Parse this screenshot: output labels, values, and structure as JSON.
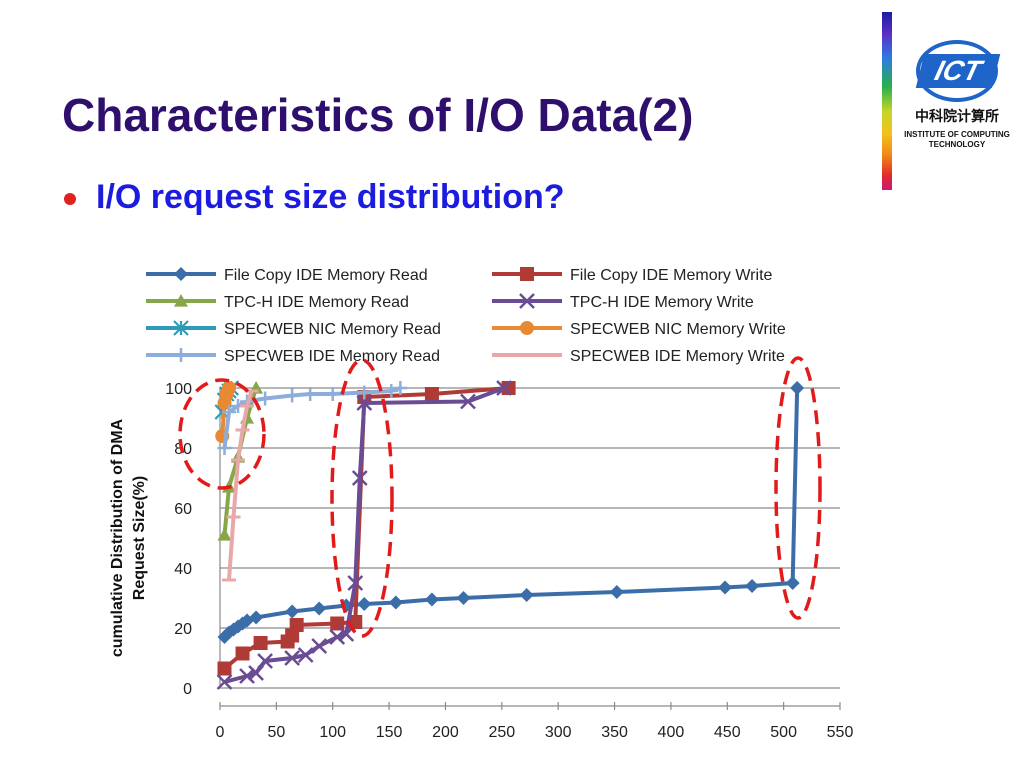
{
  "slide": {
    "title": "Characteristics of I/O Data(2)",
    "bullet": "I/O request size distribution?"
  },
  "logo": {
    "mark": "ICT",
    "chinese": "中科院计算所",
    "english_line1": "INSTITUTE OF COMPUTING",
    "english_line2": "TECHNOLOGY"
  },
  "chart_data": {
    "type": "line",
    "title": "",
    "xlabel": "",
    "ylabel": "cumulative Distribution of DMA Request Size(%)",
    "xlim": [
      0,
      550
    ],
    "ylim": [
      0,
      100
    ],
    "xticks": [
      0,
      50,
      100,
      150,
      200,
      250,
      300,
      350,
      400,
      450,
      500,
      550
    ],
    "yticks": [
      0,
      20,
      40,
      60,
      80,
      100
    ],
    "grid": "horizontal",
    "legend_position": "top",
    "series": [
      {
        "name": "File Copy IDE Memory Read",
        "color": "#3B6EA8",
        "marker": "diamond",
        "x": [
          4,
          8,
          12,
          16,
          20,
          24,
          32,
          64,
          88,
          112,
          128,
          156,
          188,
          216,
          272,
          352,
          448,
          472,
          508,
          512
        ],
        "y": [
          17,
          18.5,
          19.5,
          20.5,
          21.5,
          22.5,
          23.5,
          25.5,
          26.5,
          27.5,
          28,
          28.5,
          29.5,
          30,
          31,
          32,
          33.5,
          34,
          35,
          100
        ]
      },
      {
        "name": "File Copy IDE Memory Write",
        "color": "#B03A36",
        "marker": "square",
        "x": [
          4,
          20,
          36,
          60,
          64,
          68,
          104,
          120,
          128,
          188,
          256
        ],
        "y": [
          6.5,
          11.5,
          15,
          15.5,
          17.5,
          21,
          21.5,
          22,
          97,
          98,
          100
        ]
      },
      {
        "name": "TPC-H IDE Memory Read",
        "color": "#86A64A",
        "marker": "triangle",
        "x": [
          4,
          8,
          16,
          24,
          32
        ],
        "y": [
          51,
          67,
          77,
          90,
          100
        ]
      },
      {
        "name": "TPC-H IDE Memory Write",
        "color": "#6A4C94",
        "marker": "x",
        "x": [
          4,
          24,
          32,
          40,
          64,
          76,
          88,
          104,
          112,
          120,
          124,
          128,
          220,
          252
        ],
        "y": [
          2,
          4,
          5,
          9,
          10,
          11,
          14,
          17,
          18,
          35,
          70,
          95,
          95.5,
          100
        ]
      },
      {
        "name": "SPECWEB NIC Memory Read",
        "color": "#2E9CB8",
        "marker": "asterisk",
        "x": [
          2,
          4,
          6,
          8,
          10
        ],
        "y": [
          92,
          96,
          98,
          99,
          100
        ]
      },
      {
        "name": "SPECWEB NIC Memory Write",
        "color": "#E88A34",
        "marker": "circle",
        "x": [
          2,
          4,
          6,
          8
        ],
        "y": [
          84,
          95,
          98,
          100
        ]
      },
      {
        "name": "SPECWEB IDE Memory Read",
        "color": "#8DAEDC",
        "marker": "plus",
        "x": [
          4,
          8,
          16,
          24,
          40,
          64,
          80,
          100,
          128,
          152,
          160
        ],
        "y": [
          80,
          92,
          94,
          95.5,
          96.5,
          97.5,
          98,
          98,
          98.5,
          99,
          100
        ]
      },
      {
        "name": "SPECWEB IDE Memory Write",
        "color": "#E8A7A8",
        "marker": "dash",
        "x": [
          8,
          12,
          16,
          20,
          24,
          28
        ],
        "y": [
          36,
          57,
          76,
          86,
          94,
          99
        ]
      }
    ]
  }
}
